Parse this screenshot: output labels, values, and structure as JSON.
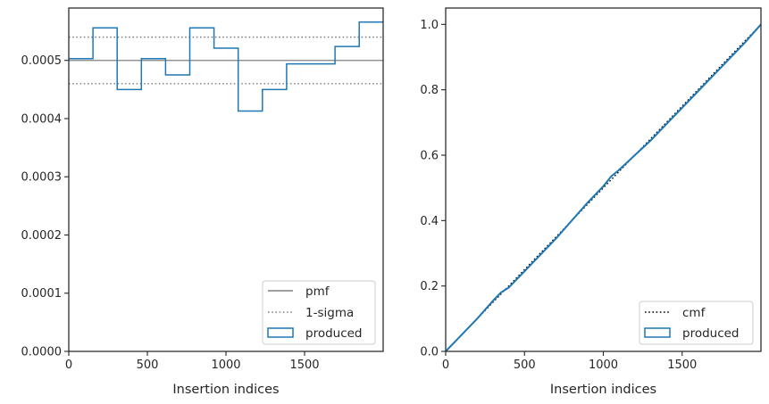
{
  "chart_data": [
    {
      "type": "line",
      "title": "",
      "xlabel": "Insertion indices",
      "ylabel": "",
      "xlim": [
        0,
        2000
      ],
      "ylim": [
        0,
        0.00059
      ],
      "x_ticks": [
        0,
        500,
        1000,
        1500
      ],
      "x_tick_labels": [
        "0",
        "500",
        "1000",
        "1500"
      ],
      "y_ticks": [
        0,
        0.0001,
        0.0002,
        0.0003,
        0.0004,
        0.0005
      ],
      "y_tick_labels": [
        "0.0000",
        "0.0001",
        "0.0002",
        "0.0003",
        "0.0004",
        "0.0005"
      ],
      "grid": false,
      "legend_position": "lower-right",
      "series": [
        {
          "name": "pmf",
          "style": "solid",
          "color": "#808080",
          "value": 0.0005
        },
        {
          "name": "1-sigma",
          "style": "dotted",
          "color": "#808080",
          "values": [
            0.00054,
            0.00046
          ]
        },
        {
          "name": "produced",
          "style": "step",
          "color": "#1f77b4",
          "bin_edges": [
            0,
            154,
            308,
            462,
            616,
            770,
            924,
            1078,
            1232,
            1386,
            1540,
            1694,
            1848,
            2000
          ],
          "values": [
            0.000503,
            0.000556,
            0.00045,
            0.000503,
            0.000475,
            0.000556,
            0.000521,
            0.000413,
            0.00045,
            0.000494,
            0.000494,
            0.000524,
            0.000566
          ]
        }
      ]
    },
    {
      "type": "line",
      "title": "",
      "xlabel": "Insertion indices",
      "ylabel": "",
      "xlim": [
        0,
        2000
      ],
      "ylim": [
        0,
        1.05
      ],
      "x_ticks": [
        0,
        500,
        1000,
        1500
      ],
      "x_tick_labels": [
        "0",
        "500",
        "1000",
        "1500"
      ],
      "y_ticks": [
        0,
        0.2,
        0.4,
        0.6,
        0.8,
        1.0
      ],
      "y_tick_labels": [
        "0.0",
        "0.2",
        "0.4",
        "0.6",
        "0.8",
        "1.0"
      ],
      "grid": false,
      "legend_position": "lower-right",
      "series": [
        {
          "name": "cmf",
          "style": "dotted",
          "color": "#000000",
          "x": [
            0,
            2000
          ],
          "y": [
            0,
            1.0
          ]
        },
        {
          "name": "produced",
          "style": "solid",
          "color": "#1f77b4",
          "x": [
            0,
            100,
            200,
            300,
            350,
            400,
            500,
            600,
            700,
            800,
            900,
            1000,
            1050,
            1100,
            1200,
            1300,
            1400,
            1500,
            1600,
            1700,
            1800,
            1900,
            2000
          ],
          "y": [
            0,
            0.05,
            0.1,
            0.155,
            0.18,
            0.195,
            0.245,
            0.295,
            0.345,
            0.4,
            0.455,
            0.505,
            0.535,
            0.555,
            0.6,
            0.645,
            0.695,
            0.745,
            0.795,
            0.845,
            0.895,
            0.945,
            1.0
          ]
        }
      ]
    }
  ]
}
